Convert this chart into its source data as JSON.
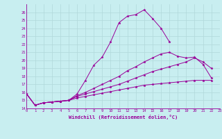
{
  "xlabel": "Windchill (Refroidissement éolien,°C)",
  "background_color": "#c8eef0",
  "grid_color": "#b0d8da",
  "line_color": "#990099",
  "x_ticks": [
    0,
    1,
    2,
    3,
    4,
    5,
    6,
    7,
    8,
    9,
    10,
    11,
    12,
    13,
    14,
    15,
    16,
    17,
    18,
    19,
    20,
    21,
    22,
    23
  ],
  "ylim": [
    14,
    27
  ],
  "xlim": [
    0,
    23
  ],
  "y_ticks": [
    14,
    15,
    16,
    17,
    18,
    19,
    20,
    21,
    22,
    23,
    24,
    25,
    26
  ],
  "series": [
    [
      15.8,
      14.4,
      14.7,
      14.8,
      14.9,
      15.0,
      15.8,
      17.5,
      19.4,
      20.4,
      22.3,
      24.7,
      25.5,
      25.7,
      26.3,
      25.2,
      24.0,
      22.3,
      null,
      null,
      null,
      null,
      null,
      null
    ],
    [
      15.8,
      14.4,
      14.7,
      14.8,
      14.9,
      15.0,
      15.6,
      16.0,
      16.5,
      17.0,
      17.5,
      18.0,
      18.7,
      19.2,
      19.8,
      20.3,
      20.8,
      21.0,
      20.5,
      20.3,
      20.4,
      19.5,
      17.8,
      null
    ],
    [
      15.8,
      14.4,
      14.7,
      14.8,
      14.9,
      15.0,
      15.5,
      15.8,
      16.1,
      16.4,
      16.7,
      17.0,
      17.4,
      17.8,
      18.2,
      18.6,
      18.9,
      19.2,
      19.5,
      19.8,
      20.3,
      19.8,
      19.0,
      null
    ],
    [
      15.8,
      14.4,
      14.7,
      14.8,
      14.9,
      15.0,
      15.3,
      15.5,
      15.7,
      15.9,
      16.1,
      16.3,
      16.5,
      16.7,
      16.9,
      17.0,
      17.1,
      17.2,
      17.3,
      17.4,
      17.5,
      17.5,
      17.5,
      null
    ]
  ]
}
